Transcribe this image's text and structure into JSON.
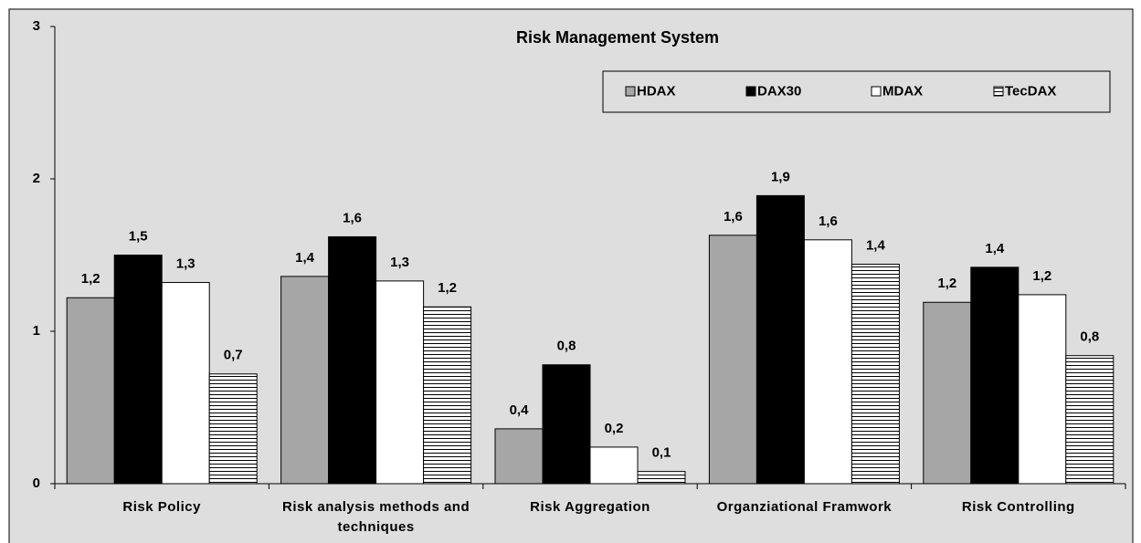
{
  "chart_data": {
    "type": "bar",
    "title": "Risk Management System",
    "categories": [
      "Risk Policy",
      "Risk analysis methods and techniques",
      "Risk Aggregation",
      "Organziational Framwork",
      "Risk Controlling"
    ],
    "series": [
      {
        "name": "HDAX",
        "color": "#a6a6a6",
        "values": [
          1.22,
          1.36,
          0.36,
          1.63,
          1.19
        ],
        "value_labels": [
          "1,2",
          "1,4",
          "0,4",
          "1,6",
          "1,2"
        ]
      },
      {
        "name": "DAX30",
        "color": "#000000",
        "values": [
          1.5,
          1.62,
          0.78,
          1.89,
          1.42
        ],
        "value_labels": [
          "1,5",
          "1,6",
          "0,8",
          "1,9",
          "1,4"
        ]
      },
      {
        "name": "MDAX",
        "color": "#ffffff",
        "values": [
          1.32,
          1.33,
          0.24,
          1.6,
          1.24
        ],
        "value_labels": [
          "1,3",
          "1,3",
          "0,2",
          "1,6",
          "1,2"
        ]
      },
      {
        "name": "TecDAX",
        "color": "#000000",
        "hatch": "horizontal",
        "values": [
          0.72,
          1.16,
          0.08,
          1.44,
          0.84
        ],
        "value_labels": [
          "0,7",
          "1,2",
          "0,1",
          "1,4",
          "0,8"
        ]
      }
    ],
    "ylim": [
      0,
      3
    ],
    "yticks": [
      0,
      1,
      2,
      3
    ],
    "legend": "top right"
  }
}
